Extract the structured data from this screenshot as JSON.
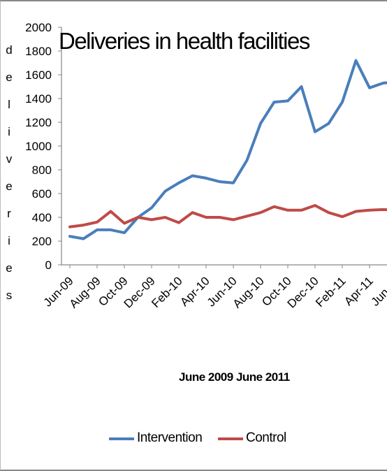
{
  "chart_data": {
    "type": "line",
    "title": "Deliveries in health facilities",
    "xlabel": "June 2009 June 2011",
    "ylabel": "deliveries",
    "ylim": [
      0,
      2000
    ],
    "yticks": [
      0,
      200,
      400,
      600,
      800,
      1000,
      1200,
      1400,
      1600,
      1800,
      2000
    ],
    "x": [
      "Jun-09",
      "Jul-09",
      "Aug-09",
      "Sep-09",
      "Oct-09",
      "Nov-09",
      "Dec-09",
      "Jan-10",
      "Feb-10",
      "Mar-10",
      "Apr-10",
      "May-10",
      "Jun-10",
      "Jul-10",
      "Aug-10",
      "Sep-10",
      "Oct-10",
      "Nov-10",
      "Dec-10",
      "Jan-11",
      "Feb-11",
      "Mar-11",
      "Apr-11",
      "May-11",
      "Jun-11"
    ],
    "xtick_labels": [
      "Jun-09",
      "Aug-09",
      "Oct-09",
      "Dec-09",
      "Feb-10",
      "Apr-10",
      "Jun-10",
      "Aug-10",
      "Oct-10",
      "Dec-10",
      "Feb-11",
      "Apr-11",
      "Jun-11"
    ],
    "series": [
      {
        "name": "Intervention",
        "color": "#4a7ebb",
        "values": [
          240,
          220,
          295,
          295,
          270,
          400,
          480,
          620,
          690,
          750,
          730,
          700,
          690,
          880,
          1190,
          1370,
          1380,
          1500,
          1120,
          1190,
          1370,
          1720,
          1490,
          1530,
          1540
        ]
      },
      {
        "name": "Control",
        "color": "#be4b48",
        "values": [
          320,
          335,
          360,
          450,
          350,
          400,
          380,
          400,
          355,
          440,
          400,
          400,
          380,
          410,
          440,
          490,
          460,
          460,
          500,
          440,
          405,
          450,
          460,
          465,
          460
        ]
      }
    ],
    "grid": false,
    "legend": "bottom"
  }
}
